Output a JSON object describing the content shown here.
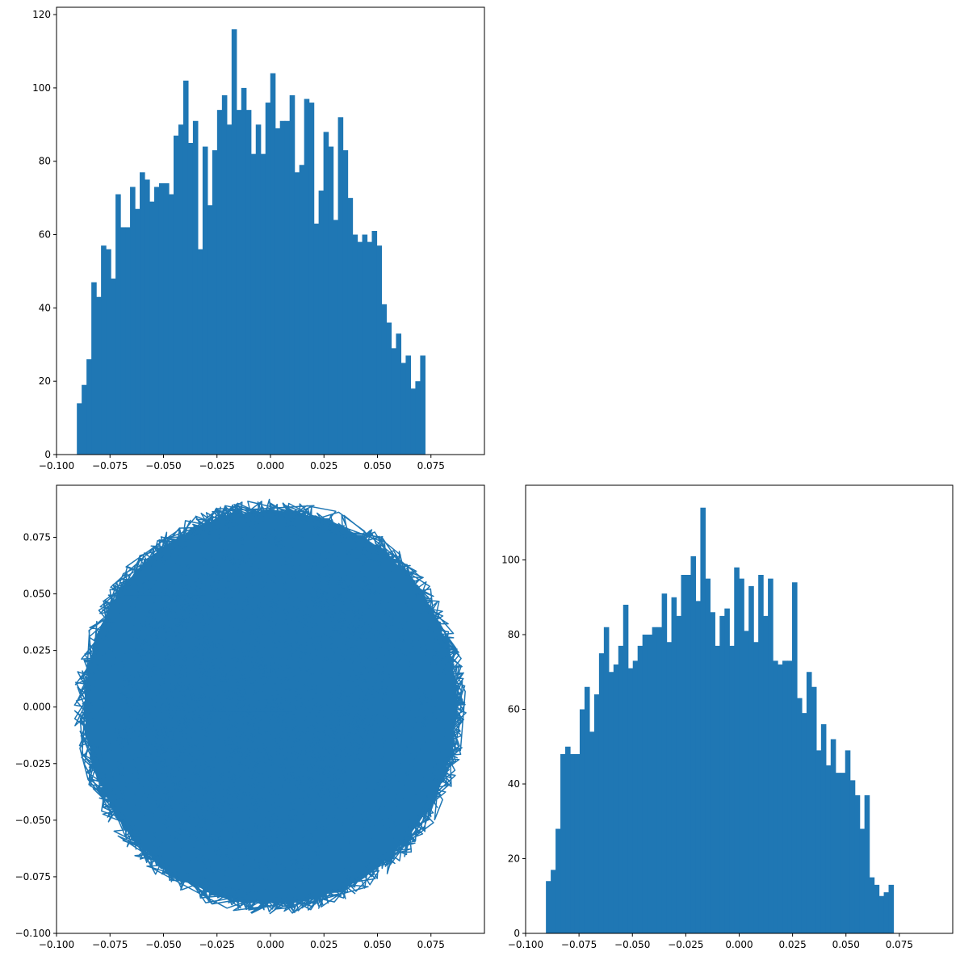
{
  "chart_data": [
    {
      "type": "bar",
      "subtype": "histogram",
      "position": "top-left",
      "title": "",
      "xlabel": "",
      "ylabel": "",
      "color": "#1f77b4",
      "bin_start": -0.0905,
      "bin_width": 0.00226,
      "xlim": [
        -0.1,
        0.1
      ],
      "ylim": [
        0,
        122
      ],
      "xticks": [
        -0.1,
        -0.075,
        -0.05,
        -0.025,
        0.0,
        0.025,
        0.05,
        0.075
      ],
      "xtick_labels": [
        "−0.100",
        "−0.075",
        "−0.050",
        "−0.025",
        "0.000",
        "0.025",
        "0.050",
        "0.075"
      ],
      "yticks": [
        0,
        20,
        40,
        60,
        80,
        100,
        120
      ],
      "ytick_labels": [
        "0",
        "20",
        "40",
        "60",
        "80",
        "100",
        "120"
      ],
      "values": [
        14,
        19,
        26,
        47,
        43,
        57,
        56,
        48,
        71,
        62,
        62,
        73,
        67,
        77,
        75,
        69,
        73,
        74,
        74,
        71,
        87,
        90,
        102,
        85,
        91,
        56,
        84,
        68,
        83,
        94,
        98,
        90,
        116,
        94,
        100,
        94,
        82,
        90,
        82,
        96,
        104,
        89,
        91,
        91,
        98,
        77,
        79,
        97,
        96,
        63,
        72,
        88,
        84,
        64,
        92,
        83,
        70,
        60,
        58,
        60,
        58,
        61,
        57,
        41,
        36,
        29,
        33,
        25,
        27,
        18,
        20,
        27
      ]
    },
    {
      "type": "line",
      "position": "bottom-left",
      "title": "",
      "xlabel": "",
      "ylabel": "",
      "color": "#1f77b4",
      "description_shape": "dense random walk filling a disk of radius ~0.09",
      "radius": 0.09,
      "center": [
        0,
        0
      ],
      "xlim": [
        -0.1,
        0.1
      ],
      "ylim": [
        -0.1,
        0.098
      ],
      "xticks": [
        -0.1,
        -0.075,
        -0.05,
        -0.025,
        0.0,
        0.025,
        0.05,
        0.075
      ],
      "xtick_labels": [
        "−0.100",
        "−0.075",
        "−0.050",
        "−0.025",
        "0.000",
        "0.025",
        "0.050",
        "0.075"
      ],
      "yticks": [
        -0.1,
        -0.075,
        -0.05,
        -0.025,
        0.0,
        0.025,
        0.05,
        0.075
      ],
      "ytick_labels": [
        "−0.100",
        "−0.075",
        "−0.050",
        "−0.025",
        "0.000",
        "0.025",
        "0.050",
        "0.075"
      ]
    },
    {
      "type": "bar",
      "subtype": "histogram",
      "position": "bottom-right",
      "title": "",
      "xlabel": "",
      "ylabel": "",
      "color": "#1f77b4",
      "bin_start": -0.0905,
      "bin_width": 0.00226,
      "xlim": [
        -0.1,
        0.1
      ],
      "ylim": [
        0,
        120
      ],
      "xticks": [
        -0.1,
        -0.075,
        -0.05,
        -0.025,
        0.0,
        0.025,
        0.05,
        0.075
      ],
      "xtick_labels": [
        "−0.100",
        "−0.075",
        "−0.050",
        "−0.025",
        "0.000",
        "0.025",
        "0.050",
        "0.075"
      ],
      "yticks": [
        0,
        20,
        40,
        60,
        80,
        100
      ],
      "ytick_labels": [
        "0",
        "20",
        "40",
        "60",
        "80",
        "100"
      ],
      "values": [
        14,
        17,
        28,
        48,
        50,
        48,
        48,
        60,
        66,
        54,
        64,
        75,
        82,
        70,
        72,
        77,
        88,
        71,
        73,
        77,
        80,
        80,
        82,
        82,
        91,
        78,
        90,
        85,
        96,
        96,
        101,
        89,
        114,
        95,
        86,
        77,
        85,
        87,
        77,
        98,
        95,
        81,
        93,
        78,
        96,
        85,
        95,
        73,
        72,
        73,
        73,
        94,
        63,
        59,
        70,
        66,
        49,
        56,
        45,
        52,
        43,
        43,
        49,
        41,
        37,
        28,
        37,
        15,
        13,
        10,
        11,
        13
      ]
    }
  ]
}
